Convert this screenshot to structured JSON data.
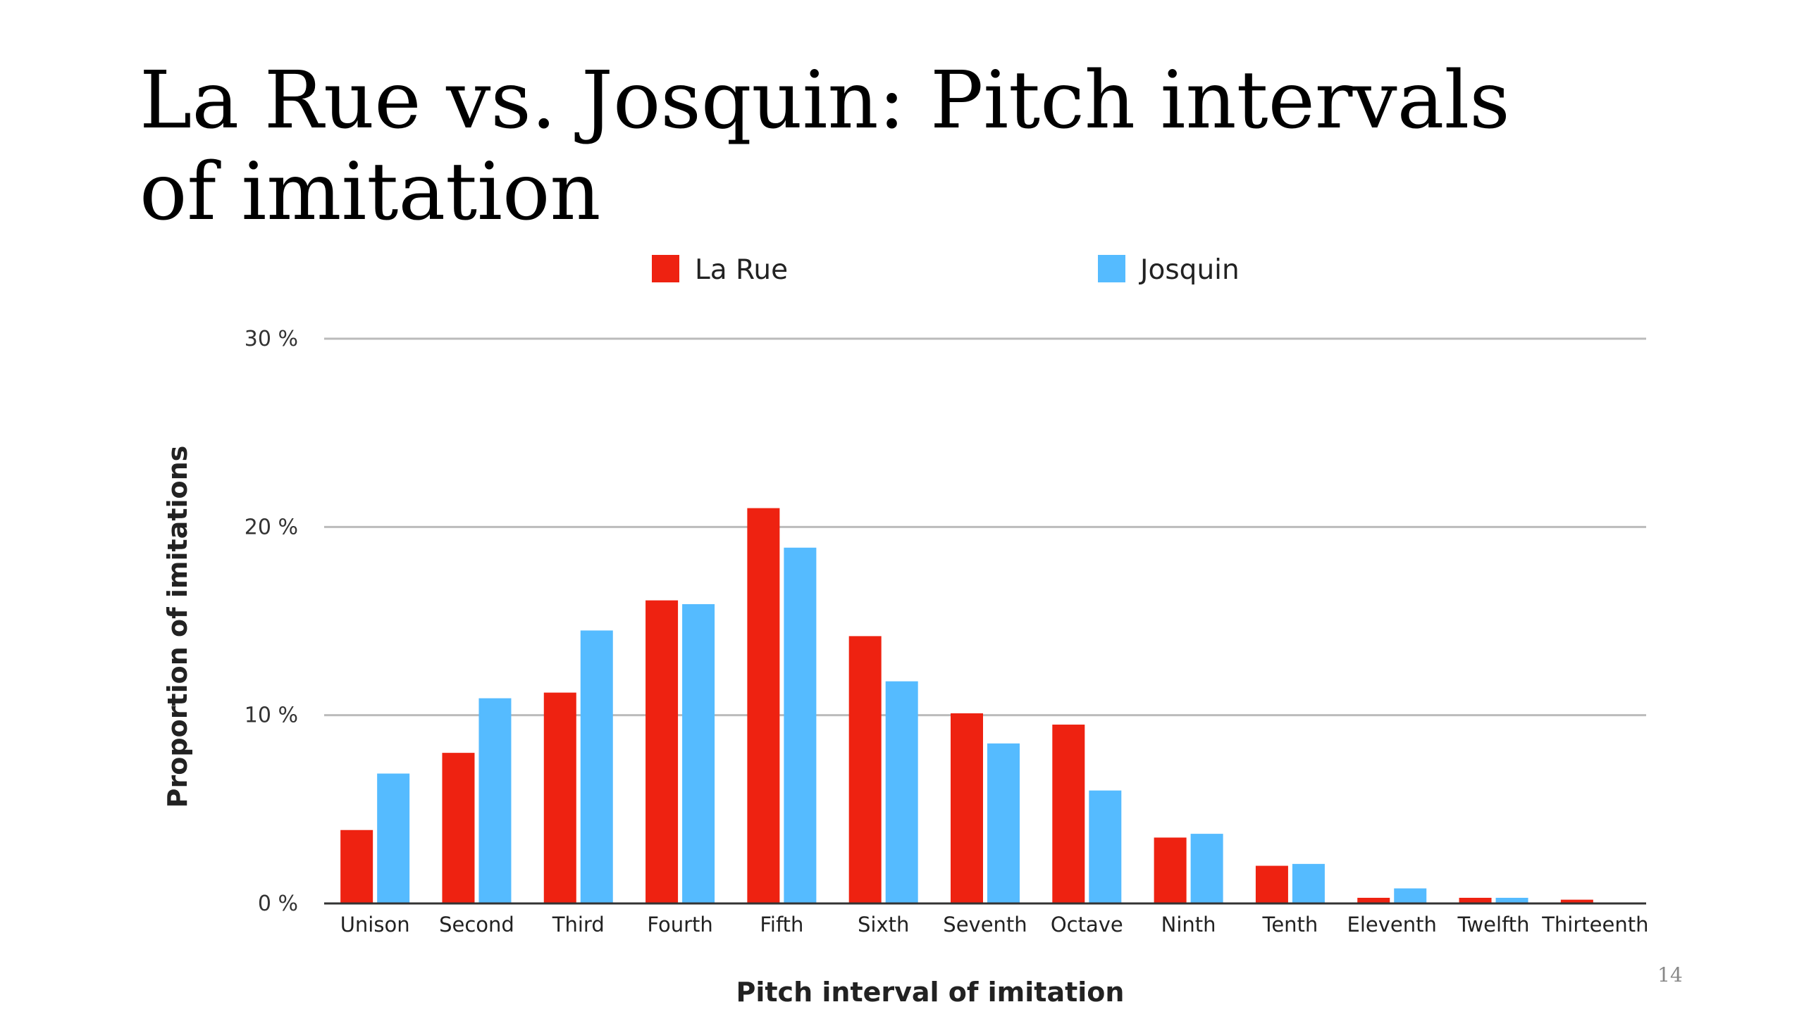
{
  "slide": {
    "title": "La Rue vs. Josquin: Pitch intervals of imitation",
    "page_number": "14"
  },
  "colors": {
    "la_rue": "#ee2211",
    "josquin": "#55bbff",
    "gridline": "#bbbbbb",
    "baseline": "#333333"
  },
  "chart_data": {
    "type": "bar",
    "xlabel": "Pitch interval of imitation",
    "ylabel": "Proportion of imitations",
    "ylim": [
      0,
      30
    ],
    "yticks": [
      0,
      10,
      20,
      30
    ],
    "ytick_labels": [
      "0 %",
      "10 %",
      "20 %",
      "30 %"
    ],
    "grid": true,
    "legend_position": "top",
    "categories": [
      "Unison",
      "Second",
      "Third",
      "Fourth",
      "Fifth",
      "Sixth",
      "Seventh",
      "Octave",
      "Ninth",
      "Tenth",
      "Eleventh",
      "Twelfth",
      "Thirteenth"
    ],
    "series": [
      {
        "name": "La Rue",
        "color": "#ee2211",
        "values": [
          3.9,
          8.0,
          11.2,
          16.1,
          21.0,
          14.2,
          10.1,
          9.5,
          3.5,
          2.0,
          0.3,
          0.3,
          0.2
        ]
      },
      {
        "name": "Josquin",
        "color": "#55bbff",
        "values": [
          6.9,
          10.9,
          14.5,
          15.9,
          18.9,
          11.8,
          8.5,
          6.0,
          3.7,
          2.1,
          0.8,
          0.3,
          0.0
        ]
      }
    ]
  }
}
